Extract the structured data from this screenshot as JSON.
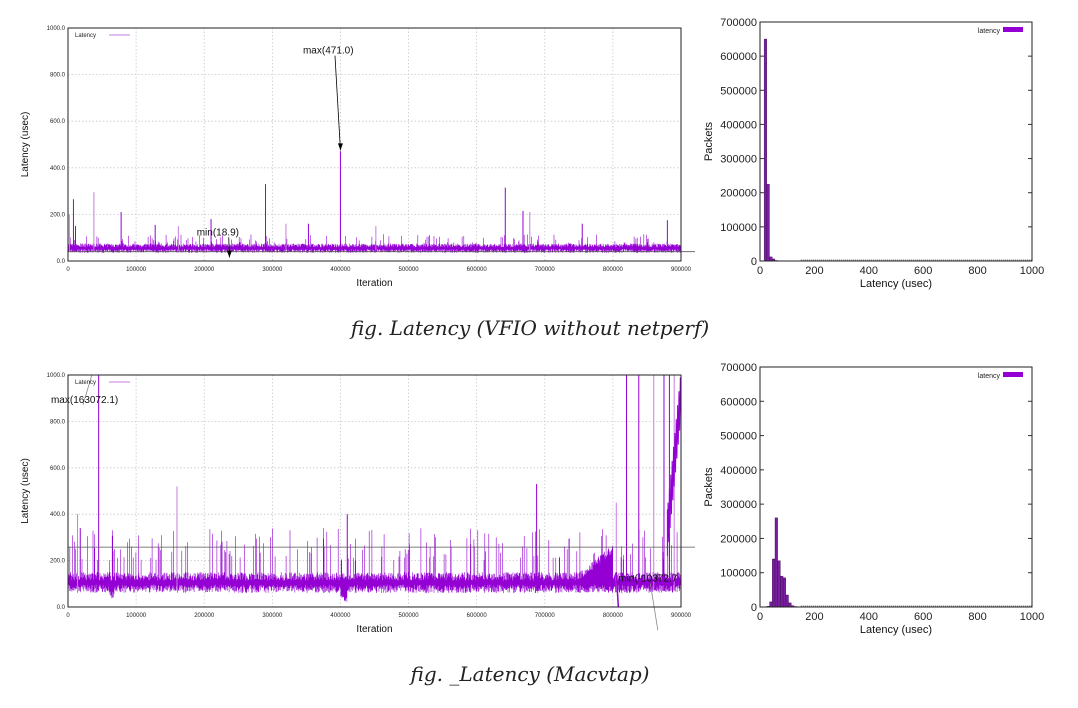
{
  "captions": [
    "fig. Latency (VFIO without netperf)",
    "fig. _Latency (Macvtap)"
  ],
  "colors": {
    "series": "#9400d3",
    "series_light": "#c77ddf",
    "hist_fill": "#7a1fa0",
    "grid": "#c8c8c8",
    "annotation": "#000000"
  },
  "chart_data": [
    {
      "type": "line",
      "xlabel": "Iteration",
      "ylabel": "Latency (usec)",
      "xlim": [
        0,
        900000
      ],
      "ylim": [
        0,
        1000
      ],
      "xticks": [
        "0",
        "100000",
        "200000",
        "300000",
        "400000",
        "500000",
        "600000",
        "700000",
        "800000",
        "900000"
      ],
      "yticks": [
        "0.0",
        "200.0",
        "400.0",
        "600.0",
        "800.0",
        "1000.0"
      ],
      "grid": true,
      "legend": "top-left",
      "series": [
        {
          "name": "Latency",
          "baseline_range": [
            35,
            75
          ],
          "spikes": [
            [
              2000,
              200
            ],
            [
              8000,
              265
            ],
            [
              11000,
              150
            ],
            [
              38000,
              295
            ],
            [
              78000,
              210
            ],
            [
              128000,
              155
            ],
            [
              162000,
              150
            ],
            [
              210000,
              180
            ],
            [
              290000,
              330
            ],
            [
              320000,
              160
            ],
            [
              353000,
              160
            ],
            [
              400000,
              471
            ],
            [
              452000,
              150
            ],
            [
              642000,
              315
            ],
            [
              668000,
              215
            ],
            [
              678000,
              210
            ],
            [
              755000,
              160
            ],
            [
              880000,
              175
            ]
          ]
        }
      ],
      "reference_line": 40,
      "annotations": [
        {
          "text": "max(471.0)",
          "text_at": [
            345000,
            890
          ],
          "arrow_to": [
            400000,
            475
          ]
        },
        {
          "text": "min(18.9)",
          "text_at": [
            189000,
            110
          ],
          "arrow_to": [
            237000,
            15
          ]
        }
      ]
    },
    {
      "type": "bar",
      "xlabel": "Latency (usec)",
      "ylabel": "Packets",
      "xlim": [
        0,
        1000
      ],
      "ylim": [
        0,
        700000
      ],
      "xticks": [
        "0",
        "200",
        "400",
        "600",
        "800",
        "1000"
      ],
      "yticks": [
        "0",
        "100000",
        "200000",
        "300000",
        "400000",
        "500000",
        "600000",
        "700000"
      ],
      "legend": "top-right",
      "series": [
        {
          "name": "latency",
          "x": [
            20,
            30,
            40,
            50,
            60,
            70,
            80,
            90,
            100,
            150,
            200,
            300
          ],
          "values": [
            650000,
            225000,
            12000,
            6000,
            1500,
            800,
            500,
            400,
            300,
            200,
            150,
            100
          ]
        }
      ]
    },
    {
      "type": "line",
      "xlabel": "Iteration",
      "ylabel": "Latency (usec)",
      "xlim": [
        0,
        900000
      ],
      "ylim": [
        0,
        1000
      ],
      "xticks": [
        "0",
        "100000",
        "200000",
        "300000",
        "400000",
        "500000",
        "600000",
        "700000",
        "800000",
        "900000"
      ],
      "yticks": [
        "0.0",
        "200.0",
        "400.0",
        "600.0",
        "800.0",
        "1000.0"
      ],
      "grid": true,
      "legend": "top-left",
      "series": [
        {
          "name": "Latency",
          "baseline_range": [
            60,
            150
          ],
          "spikes": [
            [
              14000,
              400
            ],
            [
              18000,
              340
            ],
            [
              45000,
              1000
            ],
            [
              160000,
              520
            ],
            [
              410000,
              400
            ],
            [
              688000,
              530
            ],
            [
              805000,
              450
            ],
            [
              820000,
              1000
            ],
            [
              838000,
              1000
            ],
            [
              860000,
              1000
            ],
            [
              875000,
              1000
            ],
            [
              883000,
              1000
            ],
            [
              890000,
              1000
            ],
            [
              900000,
              1000
            ]
          ]
        }
      ],
      "reference_line": 258,
      "annotations": [
        {
          "text": "max(163072.1)",
          "text_at": [
            -25000,
            880
          ],
          "arrow_to": [
            35000,
            1000
          ]
        },
        {
          "text": "min(-10372.7",
          "text_at": [
            808000,
            110
          ],
          "arrow_to": [
            866000,
            -100
          ]
        }
      ]
    },
    {
      "type": "bar",
      "xlabel": "Latency (usec)",
      "ylabel": "Packets",
      "xlim": [
        0,
        1000
      ],
      "ylim": [
        0,
        700000
      ],
      "xticks": [
        "0",
        "200",
        "400",
        "600",
        "800",
        "1000"
      ],
      "yticks": [
        "0",
        "100000",
        "200000",
        "300000",
        "400000",
        "500000",
        "600000",
        "700000"
      ],
      "legend": "top-right",
      "series": [
        {
          "name": "latency",
          "x": [
            30,
            40,
            50,
            60,
            70,
            80,
            90,
            100,
            110,
            120,
            130,
            150,
            200
          ],
          "values": [
            2000,
            15000,
            140000,
            260000,
            135000,
            90000,
            85000,
            35000,
            12000,
            4000,
            1500,
            500,
            200
          ]
        }
      ]
    }
  ]
}
